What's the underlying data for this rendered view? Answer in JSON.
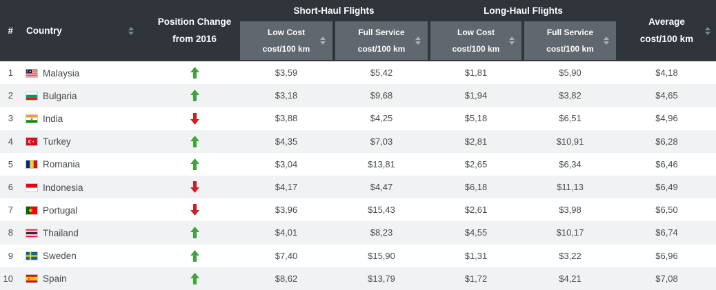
{
  "table": {
    "columns": {
      "rank": {
        "label": "#"
      },
      "country": {
        "label": "Country"
      },
      "position_change": {
        "line1": "Position Change",
        "line2": "from 2016"
      },
      "groups": {
        "short_haul": "Short-Haul Flights",
        "long_haul": "Long-Haul Flights"
      },
      "sub": {
        "short_low": {
          "line1": "Low Cost",
          "line2": "cost/100 km"
        },
        "short_full": {
          "line1": "Full Service",
          "line2": "cost/100 km"
        },
        "long_low": {
          "line1": "Low Cost",
          "line2": "cost/100 km"
        },
        "long_full": {
          "line1": "Full Service",
          "line2": "cost/100 km"
        }
      },
      "average": {
        "line1": "Average",
        "line2": "cost/100 km"
      }
    },
    "rows": [
      {
        "rank": "1",
        "country": "Malaysia",
        "flag": "malaysia",
        "change": "up",
        "short_low": "$3,59",
        "short_full": "$5,42",
        "long_low": "$1,81",
        "long_full": "$5,90",
        "average": "$4,18"
      },
      {
        "rank": "2",
        "country": "Bulgaria",
        "flag": "bulgaria",
        "change": "up",
        "short_low": "$3,18",
        "short_full": "$9,68",
        "long_low": "$1,94",
        "long_full": "$3,82",
        "average": "$4,65"
      },
      {
        "rank": "3",
        "country": "India",
        "flag": "india",
        "change": "down",
        "short_low": "$3,88",
        "short_full": "$4,25",
        "long_low": "$5,18",
        "long_full": "$6,51",
        "average": "$4,96"
      },
      {
        "rank": "4",
        "country": "Turkey",
        "flag": "turkey",
        "change": "up",
        "short_low": "$4,35",
        "short_full": "$7,03",
        "long_low": "$2,81",
        "long_full": "$10,91",
        "average": "$6,28"
      },
      {
        "rank": "5",
        "country": "Romania",
        "flag": "romania",
        "change": "up",
        "short_low": "$3,04",
        "short_full": "$13,81",
        "long_low": "$2,65",
        "long_full": "$6,34",
        "average": "$6,46"
      },
      {
        "rank": "6",
        "country": "Indonesia",
        "flag": "indonesia",
        "change": "down",
        "short_low": "$4,17",
        "short_full": "$4,47",
        "long_low": "$6,18",
        "long_full": "$11,13",
        "average": "$6,49"
      },
      {
        "rank": "7",
        "country": "Portugal",
        "flag": "portugal",
        "change": "down",
        "short_low": "$3,96",
        "short_full": "$15,43",
        "long_low": "$2,61",
        "long_full": "$3,98",
        "average": "$6,50"
      },
      {
        "rank": "8",
        "country": "Thailand",
        "flag": "thailand",
        "change": "up",
        "short_low": "$4,01",
        "short_full": "$8,23",
        "long_low": "$4,55",
        "long_full": "$10,17",
        "average": "$6,74"
      },
      {
        "rank": "9",
        "country": "Sweden",
        "flag": "sweden",
        "change": "up",
        "short_low": "$7,40",
        "short_full": "$15,90",
        "long_low": "$1,31",
        "long_full": "$3,22",
        "average": "$6,96"
      },
      {
        "rank": "10",
        "country": "Spain",
        "flag": "spain",
        "change": "up",
        "short_low": "$8,62",
        "short_full": "$13,79",
        "long_low": "$1,72",
        "long_full": "$4,21",
        "average": "$7,08"
      }
    ],
    "colors": {
      "header_dark": "#2f353b",
      "subheader_gray": "#60676f",
      "row_stripe": "#f1f2f3",
      "up_arrow": "#3fa43c",
      "down_arrow": "#cb2027"
    }
  }
}
